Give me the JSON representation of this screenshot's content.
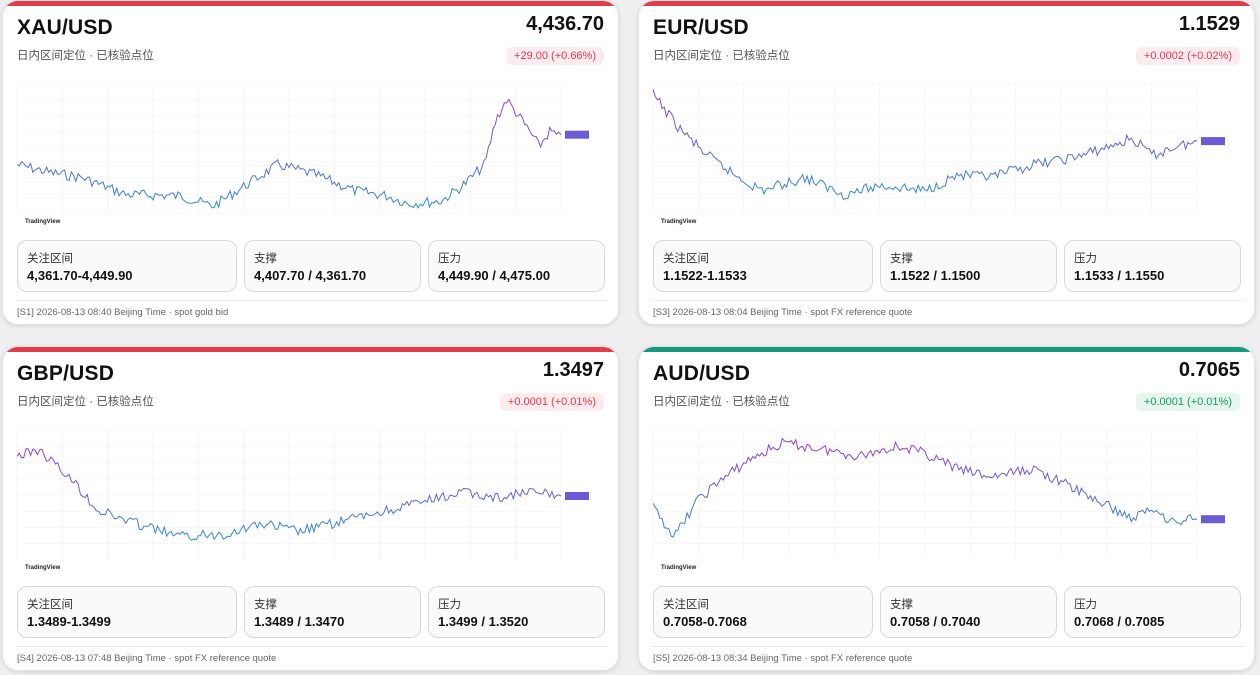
{
  "cards": [
    {
      "pair": "XAU/USD",
      "price": "4,436.70",
      "subtitle": "日内区间定位 · 已核验点位",
      "change": "+29.00 (+0.66%)",
      "accent": "#e23b4a",
      "boxes": [
        {
          "label": "关注区间",
          "value": "4,361.70-4,449.90"
        },
        {
          "label": "支撑",
          "value": "4,407.70 / 4,361.70"
        },
        {
          "label": "压力",
          "value": "4,449.90 / 4,475.00"
        }
      ],
      "footer": "[S1] 2026-08-13 08:40 Beijing Time · spot gold bid",
      "chart": {
        "watermark": "TradingView"
      }
    },
    {
      "pair": "EUR/USD",
      "price": "1.1529",
      "subtitle": "日内区间定位 · 已核验点位",
      "change": "+0.0002 (+0.02%)",
      "accent": "#e23b4a",
      "boxes": [
        {
          "label": "关注区间",
          "value": "1.1522-1.1533"
        },
        {
          "label": "支撑",
          "value": "1.1522 / 1.1500"
        },
        {
          "label": "压力",
          "value": "1.1533 / 1.1550"
        }
      ],
      "footer": "[S3] 2026-08-13 08:04 Beijing Time · spot FX reference quote",
      "chart": {
        "watermark": "TradingView"
      }
    },
    {
      "pair": "GBP/USD",
      "price": "1.3497",
      "subtitle": "日内区间定位 · 已核验点位",
      "change": "+0.0001 (+0.01%)",
      "accent": "#e23b4a",
      "boxes": [
        {
          "label": "关注区间",
          "value": "1.3489-1.3499"
        },
        {
          "label": "支撑",
          "value": "1.3489 / 1.3470"
        },
        {
          "label": "压力",
          "value": "1.3499 / 1.3520"
        }
      ],
      "footer": "[S4] 2026-08-13 07:48 Beijing Time · spot FX reference quote",
      "chart": {
        "watermark": "TradingView"
      }
    },
    {
      "pair": "AUD/USD",
      "price": "0.7065",
      "subtitle": "日内区间定位 · 已核验点位",
      "change": "+0.0001 (+0.01%)",
      "accent": "#169a7c",
      "boxes": [
        {
          "label": "关注区间",
          "value": "0.7058-0.7068"
        },
        {
          "label": "支撑",
          "value": "0.7058 / 0.7040"
        },
        {
          "label": "压力",
          "value": "0.7068 / 0.7085"
        }
      ],
      "footer": "[S5] 2026-08-13 08:34 Beijing Time · spot FX reference quote",
      "chart": {
        "watermark": "TradingView"
      }
    }
  ]
}
